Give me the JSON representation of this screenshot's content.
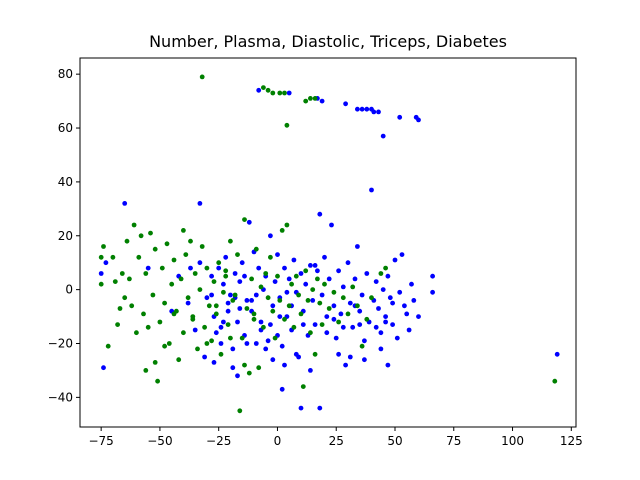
{
  "chart_data": {
    "type": "scatter",
    "title": "Number, Plasma, Diastolic, Triceps, Diabetes",
    "xlabel": "",
    "ylabel": "",
    "xlim": [
      -84,
      127
    ],
    "ylim": [
      -51,
      86
    ],
    "xticks": [
      -75,
      -50,
      -25,
      0,
      25,
      50,
      75,
      100,
      125
    ],
    "yticks": [
      -40,
      -20,
      0,
      20,
      40,
      60,
      80
    ],
    "grid": false,
    "legend": false,
    "colors": {
      "blue": "#0000ff",
      "green": "#008000"
    },
    "series": [
      {
        "color": "blue",
        "points": [
          [
            -65,
            32
          ],
          [
            -33,
            32
          ],
          [
            -74,
            -29
          ],
          [
            -75,
            6
          ],
          [
            -73,
            10
          ],
          [
            -55,
            8
          ],
          [
            -45,
            -8
          ],
          [
            -42,
            5
          ],
          [
            -38,
            -5
          ],
          [
            -37,
            8
          ],
          [
            -35,
            -15
          ],
          [
            -33,
            10
          ],
          [
            -30,
            -3
          ],
          [
            -28,
            5
          ],
          [
            -27,
            -10
          ],
          [
            -25,
            8
          ],
          [
            -24,
            -14
          ],
          [
            -23,
            2
          ],
          [
            -22,
            12
          ],
          [
            -21,
            -5
          ],
          [
            -20,
            -2
          ],
          [
            -19,
            -22
          ],
          [
            -18,
            6
          ],
          [
            -17,
            -12
          ],
          [
            -16,
            3
          ],
          [
            -15,
            10
          ],
          [
            -14,
            -17
          ],
          [
            -13,
            -4
          ],
          [
            -12,
            25
          ],
          [
            -11,
            -8
          ],
          [
            -10,
            14
          ],
          [
            -9,
            -2
          ],
          [
            -8,
            8
          ],
          [
            -7,
            -12
          ],
          [
            -6,
            0
          ],
          [
            -5,
            5
          ],
          [
            -4,
            -19
          ],
          [
            -3,
            20
          ],
          [
            -2,
            -6
          ],
          [
            -1,
            3
          ],
          [
            0,
            13
          ],
          [
            1,
            -3
          ],
          [
            2,
            -21
          ],
          [
            3,
            8
          ],
          [
            4,
            -10
          ],
          [
            5,
            4
          ],
          [
            6,
            -15
          ],
          [
            7,
            11
          ],
          [
            8,
            -1
          ],
          [
            9,
            -25
          ],
          [
            10,
            6
          ],
          [
            11,
            -8
          ],
          [
            12,
            2
          ],
          [
            13,
            -17
          ],
          [
            14,
            9
          ],
          [
            15,
            -4
          ],
          [
            16,
            -13
          ],
          [
            17,
            7
          ],
          [
            18,
            28
          ],
          [
            19,
            -2
          ],
          [
            20,
            12
          ],
          [
            21,
            -10
          ],
          [
            22,
            4
          ],
          [
            23,
            24
          ],
          [
            24,
            -6
          ],
          [
            25,
            -18
          ],
          [
            26,
            7
          ],
          [
            27,
            -9
          ],
          [
            28,
            1
          ],
          [
            29,
            -28
          ],
          [
            30,
            10
          ],
          [
            31,
            -5
          ],
          [
            32,
            -14
          ],
          [
            33,
            4
          ],
          [
            34,
            16
          ],
          [
            35,
            -8
          ],
          [
            36,
            -2
          ],
          [
            37,
            -19
          ],
          [
            38,
            6
          ],
          [
            39,
            -12
          ],
          [
            40,
            37
          ],
          [
            41,
            -4
          ],
          [
            42,
            3
          ],
          [
            43,
            -7
          ],
          [
            44,
            -16
          ],
          [
            45,
            0
          ],
          [
            46,
            -10
          ],
          [
            47,
            5
          ],
          [
            48,
            -3
          ],
          [
            49,
            -13
          ],
          [
            50,
            11
          ],
          [
            52,
            -1
          ],
          [
            53,
            13
          ],
          [
            55,
            -9
          ],
          [
            57,
            2
          ],
          [
            60,
            -10
          ],
          [
            66,
            5
          ],
          [
            66,
            -1
          ],
          [
            2,
            -37
          ],
          [
            10,
            -44
          ],
          [
            18,
            -44
          ],
          [
            -17,
            -32
          ],
          [
            -19,
            -29
          ],
          [
            -23,
            -12
          ],
          [
            -27,
            -27
          ],
          [
            -31,
            -25
          ],
          [
            -8,
            74
          ],
          [
            5,
            73
          ],
          [
            17,
            71
          ],
          [
            19,
            70
          ],
          [
            29,
            69
          ],
          [
            34,
            67
          ],
          [
            36,
            67
          ],
          [
            38,
            67
          ],
          [
            40,
            67
          ],
          [
            41,
            66
          ],
          [
            43,
            66
          ],
          [
            52,
            64
          ],
          [
            59,
            64
          ],
          [
            60,
            63
          ],
          [
            45,
            57
          ],
          [
            119,
            -24
          ],
          [
            -28,
            -2
          ],
          [
            -14,
            5
          ],
          [
            -9,
            -20
          ],
          [
            -3,
            -13
          ],
          [
            1,
            -10
          ],
          [
            6,
            -6
          ],
          [
            8,
            -24
          ],
          [
            11,
            -13
          ],
          [
            14,
            -30
          ],
          [
            16,
            9
          ],
          [
            21,
            -16
          ],
          [
            24,
            -11
          ],
          [
            26,
            -24
          ],
          [
            28,
            -14
          ],
          [
            31,
            -25
          ],
          [
            33,
            -6
          ],
          [
            35,
            -13
          ],
          [
            37,
            -26
          ],
          [
            42,
            -14
          ],
          [
            44,
            -22
          ],
          [
            46,
            -12
          ],
          [
            47,
            -28
          ],
          [
            49,
            -5
          ],
          [
            51,
            -18
          ],
          [
            54,
            -6
          ],
          [
            56,
            -15
          ],
          [
            58,
            -4
          ],
          [
            -26,
            -16
          ],
          [
            -24,
            -20
          ],
          [
            -21,
            -8
          ],
          [
            -18,
            -3
          ],
          [
            -16,
            -7
          ],
          [
            -13,
            -20
          ],
          [
            -11,
            -4
          ],
          [
            -7,
            -15
          ],
          [
            -5,
            -22
          ],
          [
            -2,
            -26
          ],
          [
            0,
            -17
          ],
          [
            3,
            -28
          ],
          [
            4,
            -1
          ]
        ]
      },
      {
        "color": "green",
        "points": [
          [
            -32,
            79
          ],
          [
            -6,
            75
          ],
          [
            -4,
            74
          ],
          [
            -2,
            73
          ],
          [
            1,
            73
          ],
          [
            3,
            73
          ],
          [
            4,
            61
          ],
          [
            16,
            71
          ],
          [
            14,
            71
          ],
          [
            12,
            70
          ],
          [
            -75,
            2
          ],
          [
            -75,
            12
          ],
          [
            -74,
            16
          ],
          [
            -72,
            -21
          ],
          [
            -70,
            12
          ],
          [
            -68,
            -13
          ],
          [
            -66,
            6
          ],
          [
            -65,
            -3
          ],
          [
            -64,
            18
          ],
          [
            -63,
            4
          ],
          [
            -62,
            -6
          ],
          [
            -61,
            24
          ],
          [
            -60,
            -16
          ],
          [
            -59,
            12
          ],
          [
            -58,
            20
          ],
          [
            -57,
            -9
          ],
          [
            -56,
            6
          ],
          [
            -55,
            -14
          ],
          [
            -54,
            21
          ],
          [
            -53,
            -2
          ],
          [
            -52,
            15
          ],
          [
            -51,
            -34
          ],
          [
            -50,
            -12
          ],
          [
            -49,
            8
          ],
          [
            -48,
            -5
          ],
          [
            -47,
            17
          ],
          [
            -46,
            -20
          ],
          [
            -45,
            2
          ],
          [
            -44,
            11
          ],
          [
            -43,
            -8
          ],
          [
            -42,
            -26
          ],
          [
            -41,
            4
          ],
          [
            -40,
            -16
          ],
          [
            -39,
            13
          ],
          [
            -38,
            -3
          ],
          [
            -37,
            18
          ],
          [
            -36,
            -11
          ],
          [
            -35,
            6
          ],
          [
            -34,
            -22
          ],
          [
            -33,
            0
          ],
          [
            -32,
            16
          ],
          [
            -31,
            -14
          ],
          [
            -30,
            8
          ],
          [
            -29,
            -6
          ],
          [
            -28,
            -19
          ],
          [
            -27,
            3
          ],
          [
            -26,
            -9
          ],
          [
            -25,
            10
          ],
          [
            -24,
            -24
          ],
          [
            -23,
            -1
          ],
          [
            -22,
            7
          ],
          [
            -21,
            -13
          ],
          [
            -20,
            18
          ],
          [
            -19,
            -4
          ],
          [
            -18,
            -2
          ],
          [
            -17,
            13
          ],
          [
            -16,
            -45
          ],
          [
            -15,
            -18
          ],
          [
            -14,
            26
          ],
          [
            -13,
            -7
          ],
          [
            -12,
            -31
          ],
          [
            -11,
            4
          ],
          [
            -10,
            -9
          ],
          [
            -9,
            15
          ],
          [
            -8,
            -29
          ],
          [
            -7,
            1
          ],
          [
            -6,
            -14
          ],
          [
            -5,
            6
          ],
          [
            -4,
            -3
          ],
          [
            -3,
            12
          ],
          [
            -2,
            -8
          ],
          [
            -1,
            -18
          ],
          [
            0,
            5
          ],
          [
            1,
            -4
          ],
          [
            2,
            22
          ],
          [
            3,
            -11
          ],
          [
            4,
            24
          ],
          [
            5,
            -6
          ],
          [
            6,
            2
          ],
          [
            7,
            -14
          ],
          [
            8,
            5
          ],
          [
            9,
            -2
          ],
          [
            10,
            -9
          ],
          [
            11,
            -36
          ],
          [
            12,
            7
          ],
          [
            13,
            -4
          ],
          [
            14,
            -16
          ],
          [
            15,
            0
          ],
          [
            16,
            -24
          ],
          [
            17,
            4
          ],
          [
            18,
            -5
          ],
          [
            19,
            -13
          ],
          [
            20,
            2
          ],
          [
            22,
            -7
          ],
          [
            24,
            -1
          ],
          [
            26,
            -12
          ],
          [
            28,
            -3
          ],
          [
            30,
            -9
          ],
          [
            32,
            1
          ],
          [
            34,
            -6
          ],
          [
            36,
            -21
          ],
          [
            38,
            -11
          ],
          [
            40,
            -3
          ],
          [
            44,
            6
          ],
          [
            46,
            8
          ],
          [
            118,
            -34
          ],
          [
            -56,
            -30
          ],
          [
            -52,
            -27
          ],
          [
            -67,
            -7
          ],
          [
            -69,
            3
          ],
          [
            -48,
            -21
          ],
          [
            -44,
            -9
          ],
          [
            -40,
            22
          ],
          [
            -36,
            -10
          ],
          [
            -30,
            -20
          ],
          [
            -26,
            -6
          ],
          [
            -22,
            5
          ],
          [
            -20,
            -18
          ],
          [
            -14,
            -28
          ],
          [
            -10,
            -11
          ]
        ]
      }
    ]
  }
}
